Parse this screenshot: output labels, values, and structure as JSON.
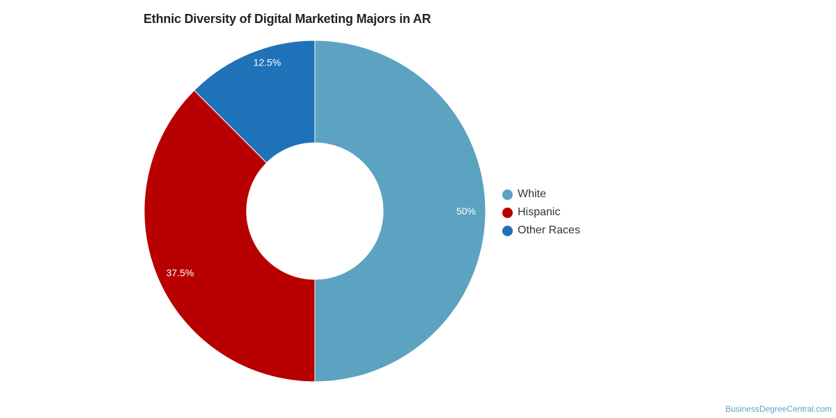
{
  "title": "Ethnic Diversity of Digital Marketing Majors in AR",
  "credit": "BusinessDegreeCentral.com",
  "chart_data": {
    "type": "pie",
    "variant": "donut",
    "title": "Ethnic Diversity of Digital Marketing Majors in AR",
    "legend_position": "right",
    "slices": [
      {
        "name": "White",
        "value": 50,
        "label": "50%",
        "color": "#5ba3c1"
      },
      {
        "name": "Hispanic",
        "value": 37.5,
        "label": "37.5%",
        "color": "#b80000"
      },
      {
        "name": "Other Races",
        "value": 12.5,
        "label": "12.5%",
        "color": "#1f72b8"
      }
    ]
  }
}
